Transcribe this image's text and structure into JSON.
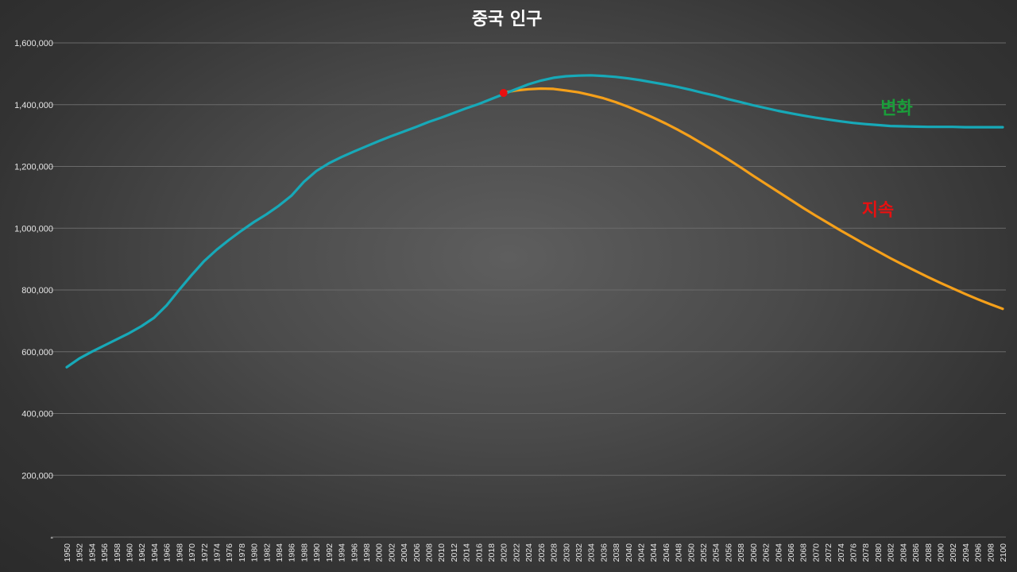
{
  "chart_data": {
    "type": "line",
    "title": "중국 인구",
    "xlabel": "",
    "ylabel": "",
    "xlim": [
      1950,
      2100
    ],
    "ylim": [
      0,
      1600000
    ],
    "yticks": [
      0,
      200000,
      400000,
      600000,
      800000,
      1000000,
      1200000,
      1400000,
      1600000
    ],
    "ytick_labels": [
      "-",
      "200,000",
      "400,000",
      "600,000",
      "800,000",
      "1,000,000",
      "1,200,000",
      "1,400,000",
      "1,600,000"
    ],
    "xtick_labels": [
      "1950",
      "1952",
      "1954",
      "1956",
      "1958",
      "1960",
      "1962",
      "1964",
      "1966",
      "1968",
      "1970",
      "1972",
      "1974",
      "1976",
      "1978",
      "1980",
      "1982",
      "1984",
      "1986",
      "1988",
      "1990",
      "1992",
      "1994",
      "1996",
      "1998",
      "2000",
      "2002",
      "2004",
      "2006",
      "2008",
      "2010",
      "2012",
      "2014",
      "2016",
      "2018",
      "2020",
      "2022",
      "2024",
      "2026",
      "2028",
      "2030",
      "2032",
      "2034",
      "2036",
      "2038",
      "2040",
      "2042",
      "2044",
      "2046",
      "2048",
      "2050",
      "2052",
      "2054",
      "2056",
      "2058",
      "2060",
      "2062",
      "2064",
      "2066",
      "2068",
      "2070",
      "2072",
      "2074",
      "2076",
      "2078",
      "2080",
      "2082",
      "2084",
      "2086",
      "2088",
      "2090",
      "2092",
      "2094",
      "2096",
      "2098",
      "2100"
    ],
    "grid": true,
    "series": [
      {
        "name": "변화",
        "color": "#17a9b8",
        "x": [
          1950,
          1952,
          1954,
          1956,
          1958,
          1960,
          1962,
          1964,
          1966,
          1968,
          1970,
          1972,
          1974,
          1976,
          1978,
          1980,
          1982,
          1984,
          1986,
          1988,
          1990,
          1992,
          1994,
          1996,
          1998,
          2000,
          2002,
          2004,
          2006,
          2008,
          2010,
          2012,
          2014,
          2016,
          2018,
          2020,
          2022,
          2024,
          2026,
          2028,
          2030,
          2032,
          2034,
          2036,
          2038,
          2040,
          2042,
          2044,
          2046,
          2048,
          2050,
          2052,
          2054,
          2056,
          2058,
          2060,
          2062,
          2064,
          2066,
          2068,
          2070,
          2072,
          2074,
          2076,
          2078,
          2080,
          2082,
          2084,
          2086,
          2088,
          2090,
          2092,
          2094,
          2096,
          2098,
          2100
        ],
        "values": [
          550000,
          578000,
          600000,
          620000,
          640000,
          660000,
          683000,
          710000,
          750000,
          800000,
          848000,
          893000,
          930000,
          962000,
          992000,
          1020000,
          1045000,
          1073000,
          1105000,
          1150000,
          1185000,
          1210000,
          1230000,
          1248000,
          1265000,
          1282000,
          1298000,
          1313000,
          1328000,
          1344000,
          1358000,
          1373000,
          1388000,
          1402000,
          1418000,
          1434000,
          1450000,
          1466000,
          1478000,
          1487000,
          1492000,
          1494000,
          1495000,
          1493000,
          1490000,
          1485000,
          1479000,
          1472000,
          1465000,
          1457000,
          1448000,
          1438000,
          1429000,
          1418000,
          1408000,
          1398000,
          1389000,
          1380000,
          1372000,
          1365000,
          1358000,
          1352000,
          1346000,
          1341000,
          1337000,
          1334000,
          1331000,
          1330000,
          1329000,
          1328000,
          1328000,
          1328000,
          1327000,
          1327000,
          1327000,
          1327000
        ]
      },
      {
        "name": "지속",
        "color": "#f5a01a",
        "x": [
          2020,
          2022,
          2024,
          2026,
          2028,
          2030,
          2032,
          2034,
          2036,
          2038,
          2040,
          2042,
          2044,
          2046,
          2048,
          2050,
          2052,
          2054,
          2056,
          2058,
          2060,
          2062,
          2064,
          2066,
          2068,
          2070,
          2072,
          2074,
          2076,
          2078,
          2080,
          2082,
          2084,
          2086,
          2088,
          2090,
          2092,
          2094,
          2096,
          2098,
          2100
        ],
        "values": [
          1439000,
          1446000,
          1450000,
          1452000,
          1451000,
          1446000,
          1440000,
          1431000,
          1421000,
          1408000,
          1393000,
          1376000,
          1358000,
          1339000,
          1318000,
          1296000,
          1272000,
          1248000,
          1223000,
          1197000,
          1170000,
          1144000,
          1118000,
          1092000,
          1066000,
          1041000,
          1017000,
          993000,
          970000,
          947000,
          925000,
          903000,
          882000,
          862000,
          842000,
          823000,
          805000,
          787000,
          770000,
          754000,
          739000
        ]
      }
    ],
    "marker": {
      "x": 2020,
      "y": 1438000,
      "color": "#e81010"
    },
    "annotations": [
      {
        "text": "변화",
        "color": "#1a9e3a",
        "x": 2083,
        "y": 1370000
      },
      {
        "text": "지속",
        "color": "#e81010",
        "x": 2080,
        "y": 1040000
      }
    ]
  }
}
